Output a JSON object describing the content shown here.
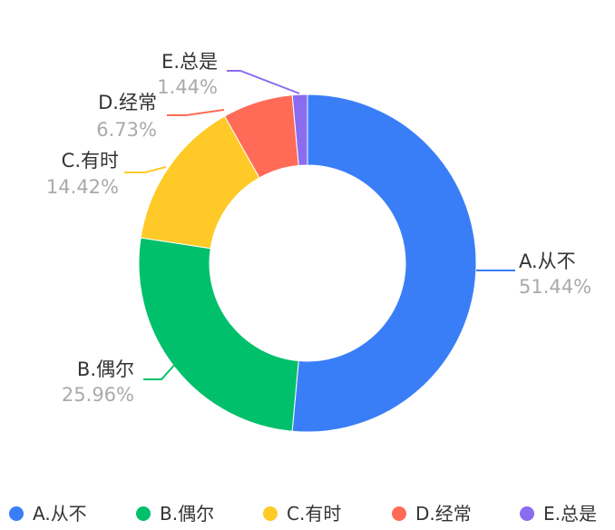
{
  "chart_data": {
    "type": "pie",
    "donut": true,
    "title": "",
    "legend_position": "bottom",
    "start_angle_deg": 90,
    "direction": "clockwise",
    "slices": [
      {
        "label": "A.从不",
        "value": 51.44,
        "percent_label": "51.44%",
        "color": "#3a7ef7"
      },
      {
        "label": "B.偶尔",
        "value": 25.96,
        "percent_label": "25.96%",
        "color": "#00c06b"
      },
      {
        "label": "C.有时",
        "value": 14.42,
        "percent_label": "14.42%",
        "color": "#ffca28"
      },
      {
        "label": "D.经常",
        "value": 6.73,
        "percent_label": "6.73%",
        "color": "#ff6b57"
      },
      {
        "label": "E.总是",
        "value": 1.44,
        "percent_label": "1.44%",
        "color": "#8a6cf0"
      }
    ]
  }
}
